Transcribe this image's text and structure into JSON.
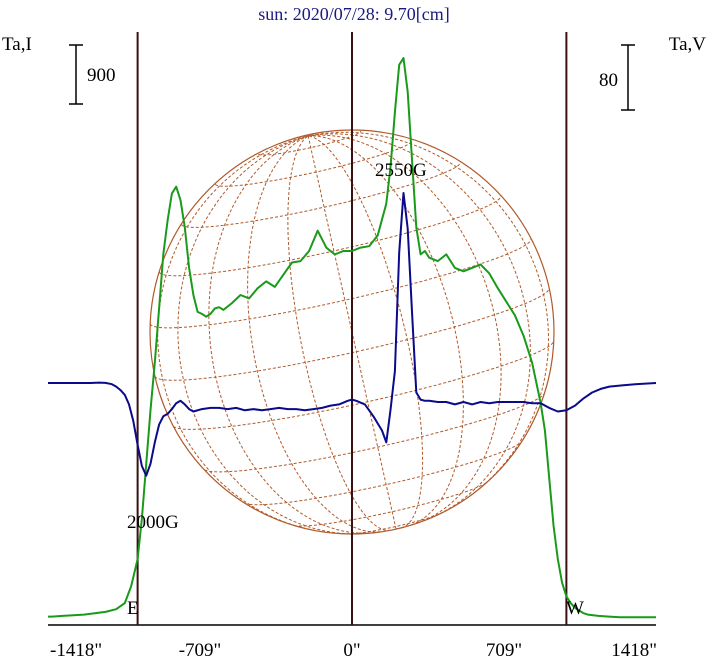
{
  "chart_data": {
    "type": "line",
    "title": "sun: 2020/07/28: 9.70[cm]",
    "ylabel_left": "Ta,I",
    "ylabel_right": "Ta,V",
    "scale_bar_left": "900",
    "scale_bar_right": "80",
    "xlim": [
      -1418,
      1418
    ],
    "x_ticks": [
      {
        "value": -1418,
        "label": "-1418\""
      },
      {
        "value": -709,
        "label": "-709\""
      },
      {
        "value": 0,
        "label": "0\""
      },
      {
        "value": 709,
        "label": "709\""
      },
      {
        "value": 1418,
        "label": "1418\""
      }
    ],
    "limb_labels": [
      "E",
      "W"
    ],
    "annotations": [
      "2550G",
      "2000G"
    ],
    "colors": {
      "intensity": "#1a9a1a",
      "polarization": "#0a0a8a",
      "limb_lines": "#3a1010",
      "grid": "#b05a2a",
      "title": "#1a1a80"
    },
    "series": [
      {
        "key": "I",
        "x": [
          -1418,
          -1400,
          -1350,
          -1300,
          -1250,
          -1200,
          -1150,
          -1100,
          -1060,
          -1030,
          -1000,
          -980,
          -960,
          -940,
          -920,
          -900,
          -880,
          -860,
          -840,
          -820,
          -800,
          -780,
          -760,
          -740,
          -720,
          -700,
          -680,
          -660,
          -640,
          -620,
          -600,
          -560,
          -520,
          -480,
          -440,
          -400,
          -360,
          -320,
          -280,
          -240,
          -200,
          -160,
          -120,
          -80,
          -40,
          0,
          40,
          80,
          120,
          160,
          180,
          200,
          220,
          240,
          260,
          280,
          300,
          320,
          340,
          360,
          400,
          440,
          480,
          520,
          560,
          600,
          640,
          680,
          720,
          760,
          800,
          840,
          880,
          900,
          920,
          940,
          960,
          980,
          1000,
          1020,
          1040,
          1060,
          1080,
          1100,
          1150,
          1200,
          1250,
          1300,
          1350,
          1418
        ],
        "values": [
          5,
          5,
          6,
          7,
          8,
          10,
          12,
          16,
          25,
          50,
          90,
          150,
          230,
          310,
          380,
          460,
          540,
          590,
          630,
          640,
          620,
          580,
          520,
          480,
          455,
          452,
          448,
          452,
          460,
          462,
          458,
          468,
          480,
          475,
          490,
          500,
          492,
          510,
          528,
          530,
          545,
          575,
          550,
          540,
          545,
          545,
          550,
          552,
          568,
          615,
          670,
          750,
          820,
          830,
          780,
          680,
          580,
          540,
          545,
          535,
          530,
          540,
          520,
          515,
          520,
          525,
          512,
          490,
          470,
          450,
          420,
          380,
          320,
          280,
          210,
          140,
          90,
          55,
          35,
          25,
          18,
          14,
          10,
          8,
          6,
          5,
          4,
          4,
          4,
          4
        ]
      },
      {
        "key": "V",
        "x": [
          -1418,
          -1300,
          -1220,
          -1180,
          -1150,
          -1120,
          -1100,
          -1080,
          -1060,
          -1040,
          -1020,
          -1000,
          -980,
          -960,
          -940,
          -920,
          -900,
          -880,
          -860,
          -840,
          -820,
          -800,
          -780,
          -760,
          -740,
          -700,
          -660,
          -620,
          -580,
          -540,
          -500,
          -460,
          -420,
          -380,
          -340,
          -300,
          -260,
          -220,
          -180,
          -140,
          -100,
          -60,
          -20,
          0,
          20,
          60,
          100,
          140,
          160,
          180,
          200,
          220,
          240,
          260,
          280,
          300,
          320,
          340,
          360,
          400,
          440,
          480,
          520,
          560,
          600,
          640,
          680,
          720,
          760,
          800,
          840,
          880,
          920,
          960,
          1000,
          1040,
          1080,
          1120,
          1160,
          1200,
          1260,
          1320,
          1418
        ],
        "values": [
          0,
          0,
          0,
          0.3,
          0.1,
          -1,
          -3,
          -6,
          -10,
          -18,
          -32,
          -52,
          -70,
          -78,
          -68,
          -50,
          -35,
          -28,
          -26,
          -22,
          -17,
          -15,
          -18,
          -22,
          -24,
          -22,
          -21,
          -21,
          -22,
          -21,
          -23,
          -22,
          -23,
          -22,
          -21,
          -22,
          -22,
          -23,
          -22,
          -21,
          -19,
          -18,
          -15,
          -14,
          -15,
          -18,
          -28,
          -40,
          -50,
          -22,
          10,
          110,
          160,
          130,
          60,
          -8,
          -14,
          -15,
          -15,
          -16,
          -16,
          -18,
          -16,
          -18,
          -16,
          -17,
          -16,
          -16,
          -16,
          -16,
          -17,
          -17,
          -21,
          -24,
          -23,
          -19,
          -13,
          -8,
          -5,
          -3,
          -2,
          -1,
          0
        ]
      }
    ]
  }
}
